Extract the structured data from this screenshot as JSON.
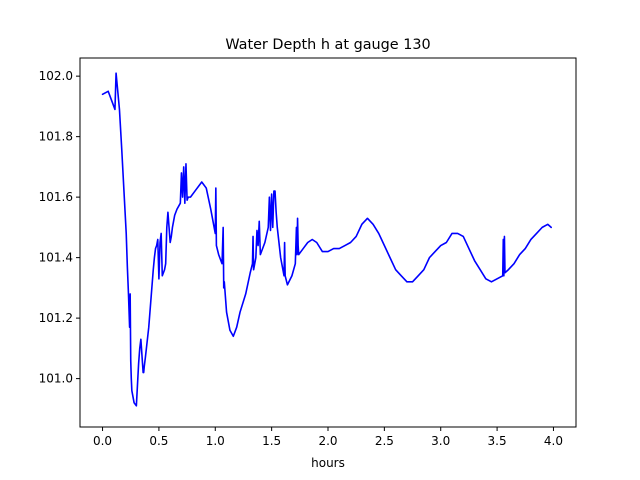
{
  "chart_data": {
    "type": "line",
    "title": "Water Depth h at gauge 130",
    "xlabel": "hours",
    "ylabel": "",
    "xlim": [
      -0.2,
      4.2
    ],
    "ylim": [
      100.84,
      102.06
    ],
    "xticks": [
      0.0,
      0.5,
      1.0,
      1.5,
      2.0,
      2.5,
      3.0,
      3.5,
      4.0
    ],
    "xtick_labels": [
      "0.0",
      "0.5",
      "1.0",
      "1.5",
      "2.0",
      "2.5",
      "3.0",
      "3.5",
      "4.0"
    ],
    "yticks": [
      101.0,
      101.2,
      101.4,
      101.6,
      101.8,
      102.0
    ],
    "ytick_labels": [
      "101.0",
      "101.2",
      "101.4",
      "101.6",
      "101.8",
      "102.0"
    ],
    "grid": false,
    "series": [
      {
        "color": "#0000ff",
        "x": [
          0.0,
          0.05,
          0.08,
          0.11,
          0.12,
          0.13,
          0.15,
          0.17,
          0.19,
          0.21,
          0.22,
          0.23,
          0.24,
          0.245,
          0.25,
          0.255,
          0.26,
          0.28,
          0.3,
          0.32,
          0.33,
          0.34,
          0.36,
          0.365,
          0.37,
          0.38,
          0.41,
          0.45,
          0.46,
          0.47,
          0.48,
          0.49,
          0.5,
          0.51,
          0.52,
          0.53,
          0.55,
          0.56,
          0.57,
          0.58,
          0.6,
          0.61,
          0.62,
          0.63,
          0.64,
          0.66,
          0.69,
          0.7,
          0.71,
          0.72,
          0.73,
          0.74,
          0.75,
          0.76,
          0.78,
          0.82,
          0.88,
          0.92,
          0.96,
          1.0,
          1.005,
          1.01,
          1.03,
          1.06,
          1.07,
          1.075,
          1.08,
          1.1,
          1.13,
          1.16,
          1.19,
          1.22,
          1.27,
          1.31,
          1.33,
          1.335,
          1.34,
          1.36,
          1.37,
          1.38,
          1.39,
          1.4,
          1.44,
          1.47,
          1.48,
          1.49,
          1.5,
          1.51,
          1.52,
          1.53,
          1.54,
          1.55,
          1.58,
          1.6,
          1.61,
          1.615,
          1.62,
          1.64,
          1.68,
          1.71,
          1.72,
          1.725,
          1.73,
          1.735,
          1.74,
          1.78,
          1.82,
          1.86,
          1.9,
          1.95,
          2.0,
          2.05,
          2.1,
          2.15,
          2.2,
          2.25,
          2.3,
          2.35,
          2.4,
          2.45,
          2.5,
          2.55,
          2.6,
          2.65,
          2.7,
          2.75,
          2.8,
          2.85,
          2.9,
          2.95,
          3.0,
          3.05,
          3.1,
          3.15,
          3.2,
          3.25,
          3.3,
          3.35,
          3.4,
          3.45,
          3.5,
          3.55,
          3.555,
          3.56,
          3.565,
          3.57,
          3.6,
          3.65,
          3.7,
          3.75,
          3.8,
          3.85,
          3.9,
          3.95,
          3.98
        ],
        "y": [
          101.94,
          101.95,
          101.92,
          101.89,
          102.01,
          101.97,
          101.89,
          101.76,
          101.62,
          101.48,
          101.37,
          101.28,
          101.17,
          101.28,
          101.06,
          101.0,
          100.96,
          100.92,
          100.91,
          101.05,
          101.1,
          101.13,
          101.02,
          101.02,
          101.04,
          101.07,
          101.17,
          101.36,
          101.4,
          101.43,
          101.44,
          101.46,
          101.33,
          101.45,
          101.48,
          101.34,
          101.36,
          101.38,
          101.5,
          101.55,
          101.45,
          101.47,
          101.5,
          101.52,
          101.54,
          101.56,
          101.58,
          101.68,
          101.6,
          101.7,
          101.58,
          101.71,
          101.59,
          101.6,
          101.6,
          101.62,
          101.65,
          101.63,
          101.56,
          101.48,
          101.63,
          101.44,
          101.41,
          101.38,
          101.5,
          101.3,
          101.32,
          101.22,
          101.16,
          101.14,
          101.17,
          101.22,
          101.28,
          101.35,
          101.38,
          101.47,
          101.36,
          101.4,
          101.49,
          101.44,
          101.52,
          101.41,
          101.45,
          101.5,
          101.6,
          101.49,
          101.61,
          101.5,
          101.62,
          101.62,
          101.55,
          101.5,
          101.4,
          101.36,
          101.34,
          101.45,
          101.34,
          101.31,
          101.34,
          101.38,
          101.5,
          101.41,
          101.53,
          101.44,
          101.41,
          101.43,
          101.45,
          101.46,
          101.45,
          101.42,
          101.42,
          101.43,
          101.43,
          101.44,
          101.45,
          101.47,
          101.51,
          101.53,
          101.51,
          101.48,
          101.44,
          101.4,
          101.36,
          101.34,
          101.32,
          101.32,
          101.34,
          101.36,
          101.4,
          101.42,
          101.44,
          101.45,
          101.48,
          101.48,
          101.47,
          101.43,
          101.39,
          101.36,
          101.33,
          101.32,
          101.33,
          101.34,
          101.46,
          101.34,
          101.47,
          101.35,
          101.36,
          101.38,
          101.41,
          101.43,
          101.46,
          101.48,
          101.5,
          101.51,
          101.5
        ]
      }
    ]
  }
}
